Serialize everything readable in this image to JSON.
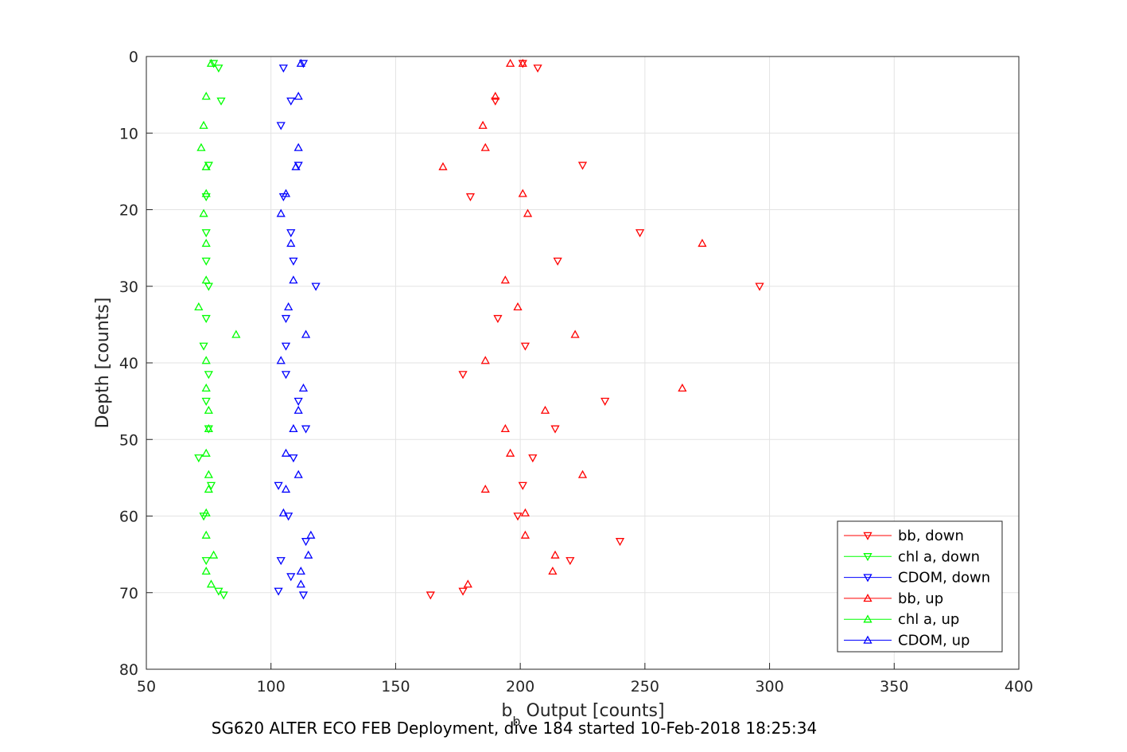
{
  "caption": "SG620 ALTER ECO FEB Deployment, dive 184 started 10-Feb-2018 18:25:34",
  "chart_data": {
    "type": "scatter",
    "xlabel_main": "b",
    "xlabel_sub": "b",
    "xlabel_rest": " Output [counts]",
    "ylabel": "Depth [counts]",
    "xlim": [
      50,
      400
    ],
    "ylim": [
      0,
      80
    ],
    "y_reversed": true,
    "xticks": [
      50,
      100,
      150,
      200,
      250,
      300,
      350,
      400
    ],
    "yticks": [
      0,
      10,
      20,
      30,
      40,
      50,
      60,
      70,
      80
    ],
    "grid": true,
    "legend_position": "lower-right",
    "series": [
      {
        "name": "bb, down",
        "color": "#ff0000",
        "marker": "triangle-down",
        "points": [
          [
            201,
            0.9
          ],
          [
            207,
            1.5
          ],
          [
            190,
            5.8
          ],
          [
            225,
            14.2
          ],
          [
            180,
            18.3
          ],
          [
            248,
            23
          ],
          [
            215,
            26.7
          ],
          [
            296,
            30
          ],
          [
            191,
            34.2
          ],
          [
            202,
            37.8
          ],
          [
            177,
            41.5
          ],
          [
            234,
            45
          ],
          [
            214,
            48.6
          ],
          [
            205,
            52.4
          ],
          [
            201,
            56
          ],
          [
            199,
            60
          ],
          [
            240,
            63.3
          ],
          [
            220,
            65.8
          ],
          [
            177,
            69.8
          ],
          [
            164,
            70.3
          ]
        ]
      },
      {
        "name": "chl a, down",
        "color": "#00ff00",
        "marker": "triangle-down",
        "points": [
          [
            77,
            0.9
          ],
          [
            79,
            1.5
          ],
          [
            80,
            5.8
          ],
          [
            75,
            14.2
          ],
          [
            74,
            18.3
          ],
          [
            74,
            23
          ],
          [
            74,
            26.7
          ],
          [
            75,
            30
          ],
          [
            74,
            34.2
          ],
          [
            73,
            37.8
          ],
          [
            75,
            41.5
          ],
          [
            74,
            45
          ],
          [
            75,
            48.6
          ],
          [
            71,
            52.4
          ],
          [
            76,
            56
          ],
          [
            73,
            60
          ],
          [
            74,
            65.8
          ],
          [
            79,
            69.8
          ],
          [
            81,
            70.3
          ]
        ]
      },
      {
        "name": "CDOM, down",
        "color": "#0000ff",
        "marker": "triangle-down",
        "points": [
          [
            113,
            0.9
          ],
          [
            105,
            1.5
          ],
          [
            108,
            5.8
          ],
          [
            104,
            9
          ],
          [
            111,
            14.2
          ],
          [
            105,
            18.3
          ],
          [
            108,
            23
          ],
          [
            109,
            26.7
          ],
          [
            118,
            30
          ],
          [
            106,
            34.2
          ],
          [
            106,
            37.8
          ],
          [
            106,
            41.5
          ],
          [
            111,
            45
          ],
          [
            114,
            48.6
          ],
          [
            109,
            52.4
          ],
          [
            103,
            56
          ],
          [
            107,
            60
          ],
          [
            114,
            63.3
          ],
          [
            104,
            65.8
          ],
          [
            108,
            67.9
          ],
          [
            103,
            69.8
          ],
          [
            113,
            70.3
          ]
        ]
      },
      {
        "name": "bb, up",
        "color": "#ff0000",
        "marker": "triangle-up",
        "points": [
          [
            196,
            0.9
          ],
          [
            201,
            0.9
          ],
          [
            190,
            5.2
          ],
          [
            185,
            9
          ],
          [
            186,
            11.9
          ],
          [
            169,
            14.4
          ],
          [
            201,
            17.9
          ],
          [
            203,
            20.5
          ],
          [
            273,
            24.4
          ],
          [
            194,
            29.2
          ],
          [
            199,
            32.7
          ],
          [
            222,
            36.3
          ],
          [
            186,
            39.7
          ],
          [
            265,
            43.3
          ],
          [
            210,
            46.2
          ],
          [
            194,
            48.6
          ],
          [
            196,
            51.8
          ],
          [
            225,
            54.6
          ],
          [
            186,
            56.5
          ],
          [
            202,
            59.6
          ],
          [
            202,
            62.5
          ],
          [
            214,
            65.1
          ],
          [
            213,
            67.2
          ],
          [
            179,
            68.9
          ]
        ]
      },
      {
        "name": "chl a, up",
        "color": "#00ff00",
        "marker": "triangle-up",
        "points": [
          [
            76,
            0.9
          ],
          [
            74,
            5.2
          ],
          [
            73,
            9
          ],
          [
            72,
            11.9
          ],
          [
            74,
            14.4
          ],
          [
            74,
            17.9
          ],
          [
            73,
            20.5
          ],
          [
            74,
            24.4
          ],
          [
            74,
            29.2
          ],
          [
            71,
            32.7
          ],
          [
            86,
            36.3
          ],
          [
            74,
            39.7
          ],
          [
            74,
            43.3
          ],
          [
            75,
            46.2
          ],
          [
            75,
            48.6
          ],
          [
            74,
            51.8
          ],
          [
            75,
            54.6
          ],
          [
            75,
            56.5
          ],
          [
            74,
            59.6
          ],
          [
            74,
            62.5
          ],
          [
            77,
            65.1
          ],
          [
            74,
            67.2
          ],
          [
            76,
            68.9
          ]
        ]
      },
      {
        "name": "CDOM, up",
        "color": "#0000ff",
        "marker": "triangle-up",
        "points": [
          [
            112,
            0.9
          ],
          [
            111,
            5.2
          ],
          [
            111,
            11.9
          ],
          [
            110,
            14.4
          ],
          [
            106,
            17.9
          ],
          [
            104,
            20.5
          ],
          [
            108,
            24.4
          ],
          [
            109,
            29.2
          ],
          [
            107,
            32.7
          ],
          [
            114,
            36.3
          ],
          [
            104,
            39.7
          ],
          [
            113,
            43.3
          ],
          [
            111,
            46.2
          ],
          [
            109,
            48.6
          ],
          [
            106,
            51.8
          ],
          [
            111,
            54.6
          ],
          [
            106,
            56.5
          ],
          [
            105,
            59.6
          ],
          [
            116,
            62.5
          ],
          [
            115,
            65.1
          ],
          [
            112,
            67.2
          ],
          [
            112,
            68.9
          ]
        ]
      }
    ]
  }
}
